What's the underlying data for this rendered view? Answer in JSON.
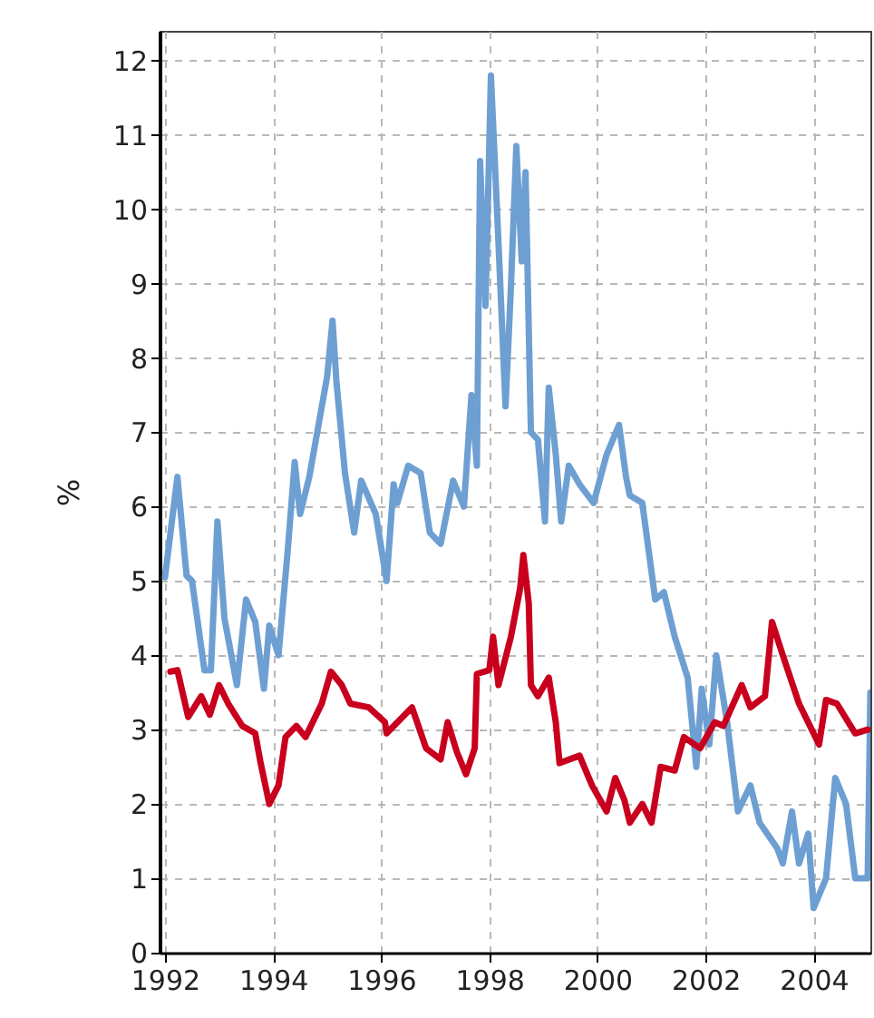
{
  "chart_data": {
    "type": "line",
    "ylabel": "%",
    "xlim": [
      1991.9,
      2005.05
    ],
    "xticks": [
      1992,
      1994,
      1996,
      1998,
      2000,
      2002,
      2004
    ],
    "ylim": [
      0,
      12.4
    ],
    "yticks": [
      0,
      1,
      2,
      3,
      4,
      5,
      6,
      7,
      8,
      9,
      10,
      11,
      12
    ],
    "grid": true,
    "line_style": "solid",
    "marker": "none",
    "series": [
      {
        "color": "#6e9fd2",
        "x": [
          1992.0,
          1992.23,
          1992.4,
          1992.5,
          1992.73,
          1992.85,
          1992.97,
          1993.1,
          1993.33,
          1993.5,
          1993.67,
          1993.83,
          1993.93,
          1994.1,
          1994.27,
          1994.4,
          1994.5,
          1994.67,
          1995.0,
          1995.1,
          1995.17,
          1995.33,
          1995.5,
          1995.63,
          1995.9,
          1996.1,
          1996.23,
          1996.3,
          1996.5,
          1996.73,
          1996.9,
          1997.1,
          1997.33,
          1997.53,
          1997.67,
          1997.77,
          1997.83,
          1997.93,
          1998.03,
          1998.17,
          1998.3,
          1998.4,
          1998.5,
          1998.6,
          1998.67,
          1998.77,
          1998.9,
          1999.03,
          1999.1,
          1999.23,
          1999.33,
          1999.47,
          1999.67,
          1999.93,
          2000.17,
          2000.4,
          2000.53,
          2000.6,
          2000.83,
          2001.07,
          2001.23,
          2001.43,
          2001.67,
          2001.83,
          2001.93,
          2002.07,
          2002.2,
          2002.4,
          2002.6,
          2002.83,
          2003.0,
          2003.33,
          2003.43,
          2003.6,
          2003.73,
          2003.9,
          2004.0,
          2004.23,
          2004.4,
          2004.6,
          2004.77,
          2005.0,
          2005.05
        ],
        "values": [
          5.05,
          6.4,
          5.07,
          5.0,
          3.8,
          3.8,
          5.8,
          4.5,
          3.6,
          4.75,
          4.45,
          3.55,
          4.4,
          4.0,
          5.4,
          6.6,
          5.9,
          6.4,
          7.75,
          8.5,
          7.7,
          6.45,
          5.65,
          6.35,
          5.9,
          5.0,
          6.3,
          6.05,
          6.55,
          6.45,
          5.65,
          5.5,
          6.35,
          6.0,
          7.5,
          6.55,
          10.65,
          8.7,
          11.8,
          9.55,
          7.35,
          8.95,
          10.85,
          9.3,
          10.5,
          7.0,
          6.9,
          5.8,
          7.6,
          6.7,
          5.8,
          6.55,
          6.3,
          6.05,
          6.7,
          7.1,
          6.4,
          6.15,
          6.05,
          4.75,
          4.85,
          4.25,
          3.7,
          2.5,
          3.55,
          2.8,
          4.0,
          3.1,
          1.9,
          2.25,
          1.75,
          1.4,
          1.2,
          1.9,
          1.2,
          1.6,
          0.6,
          1.0,
          2.35,
          2.0,
          1.0,
          1.0,
          3.5
        ]
      },
      {
        "color": "#c8001e",
        "x": [
          1992.1,
          1992.23,
          1992.43,
          1992.67,
          1992.83,
          1993.0,
          1993.17,
          1993.43,
          1993.67,
          1993.77,
          1993.93,
          1994.1,
          1994.23,
          1994.43,
          1994.6,
          1994.9,
          1995.07,
          1995.27,
          1995.43,
          1995.77,
          1996.07,
          1996.1,
          1996.57,
          1996.83,
          1997.1,
          1997.23,
          1997.4,
          1997.57,
          1997.73,
          1997.77,
          1998.0,
          1998.07,
          1998.17,
          1998.4,
          1998.57,
          1998.63,
          1998.73,
          1998.77,
          1998.9,
          1999.1,
          1999.23,
          1999.3,
          1999.67,
          1999.9,
          2000.17,
          2000.33,
          2000.5,
          2000.6,
          2000.83,
          2001.0,
          2001.17,
          2001.43,
          2001.6,
          2001.9,
          2002.17,
          2002.33,
          2002.67,
          2002.83,
          2003.1,
          2003.23,
          2003.43,
          2003.73,
          2004.1,
          2004.23,
          2004.43,
          2004.77,
          2005.0
        ],
        "values": [
          3.78,
          3.8,
          3.17,
          3.45,
          3.2,
          3.6,
          3.35,
          3.05,
          2.95,
          2.55,
          2.0,
          2.25,
          2.9,
          3.05,
          2.9,
          3.35,
          3.78,
          3.6,
          3.35,
          3.3,
          3.1,
          2.95,
          3.3,
          2.75,
          2.6,
          3.1,
          2.7,
          2.4,
          2.75,
          3.75,
          3.8,
          4.25,
          3.6,
          4.25,
          4.9,
          5.35,
          4.7,
          3.6,
          3.45,
          3.7,
          3.1,
          2.55,
          2.65,
          2.25,
          1.9,
          2.35,
          2.05,
          1.75,
          2.0,
          1.75,
          2.5,
          2.45,
          2.9,
          2.75,
          3.1,
          3.05,
          3.6,
          3.3,
          3.45,
          4.45,
          4.0,
          3.35,
          2.8,
          3.4,
          3.35,
          2.95,
          3.0
        ]
      }
    ]
  }
}
